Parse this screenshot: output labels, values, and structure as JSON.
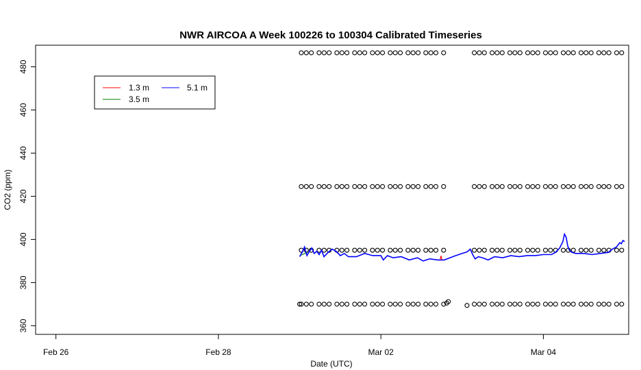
{
  "chart_data": {
    "type": "line",
    "title": "NWR AIRCOA A  Week 100226 to 100304  Calibrated Timeseries",
    "xlabel": "Date (UTC)",
    "ylabel": "CO2 (ppm)",
    "x_ticks": [
      {
        "x": 0,
        "label": "Feb 26"
      },
      {
        "x": 2,
        "label": "Feb 28"
      },
      {
        "x": 4,
        "label": "Mar 02"
      },
      {
        "x": 6,
        "label": "Mar 04"
      }
    ],
    "y_ticks": [
      360,
      380,
      400,
      420,
      440,
      460,
      480
    ],
    "xlim": [
      -0.25,
      7.05
    ],
    "ylim": [
      356,
      490
    ],
    "grid": false,
    "legend_position": "top-left",
    "series": [
      {
        "name": "1.3 m",
        "color": "#ff0000",
        "points": [
          [
            4.73,
            390.8
          ],
          [
            4.74,
            392.4
          ],
          [
            4.75,
            390.6
          ]
        ]
      },
      {
        "name": "3.5 m",
        "color": "#008000",
        "points": [
          [
            3.0,
            392.5
          ],
          [
            3.1,
            394.0
          ]
        ]
      },
      {
        "name": "5.1 m",
        "color": "#0000ff",
        "points": [
          [
            3.0,
            392
          ],
          [
            3.03,
            394
          ],
          [
            3.06,
            396.5
          ],
          [
            3.09,
            392.5
          ],
          [
            3.12,
            394.5
          ],
          [
            3.15,
            396
          ],
          [
            3.18,
            393.5
          ],
          [
            3.21,
            394.5
          ],
          [
            3.24,
            393
          ],
          [
            3.27,
            395
          ],
          [
            3.3,
            392
          ],
          [
            3.35,
            394
          ],
          [
            3.4,
            395.5
          ],
          [
            3.45,
            394.5
          ],
          [
            3.5,
            392.5
          ],
          [
            3.55,
            393.5
          ],
          [
            3.6,
            392
          ],
          [
            3.7,
            392
          ],
          [
            3.8,
            393.5
          ],
          [
            3.9,
            392.5
          ],
          [
            4.0,
            392.5
          ],
          [
            4.03,
            390.5
          ],
          [
            4.08,
            392.5
          ],
          [
            4.15,
            391.5
          ],
          [
            4.25,
            392
          ],
          [
            4.35,
            390.5
          ],
          [
            4.45,
            391.5
          ],
          [
            4.52,
            390
          ],
          [
            4.6,
            391
          ],
          [
            4.7,
            390.5
          ],
          [
            4.78,
            390.5
          ],
          [
            4.85,
            391.5
          ],
          [
            4.92,
            392.5
          ],
          [
            5.0,
            393.5
          ],
          [
            5.06,
            394.2
          ],
          [
            5.1,
            395.5
          ],
          [
            5.13,
            393
          ],
          [
            5.16,
            391
          ],
          [
            5.2,
            392
          ],
          [
            5.25,
            391.5
          ],
          [
            5.32,
            390.5
          ],
          [
            5.4,
            392
          ],
          [
            5.5,
            391.5
          ],
          [
            5.6,
            392.5
          ],
          [
            5.7,
            392
          ],
          [
            5.8,
            392.5
          ],
          [
            5.9,
            392.5
          ],
          [
            6.0,
            393
          ],
          [
            6.1,
            393
          ],
          [
            6.15,
            394
          ],
          [
            6.2,
            396
          ],
          [
            6.24,
            399
          ],
          [
            6.26,
            402.5
          ],
          [
            6.28,
            401
          ],
          [
            6.3,
            397
          ],
          [
            6.32,
            395
          ],
          [
            6.35,
            394
          ],
          [
            6.4,
            393.5
          ],
          [
            6.5,
            393.5
          ],
          [
            6.6,
            393
          ],
          [
            6.7,
            393.5
          ],
          [
            6.8,
            394
          ],
          [
            6.85,
            395.5
          ],
          [
            6.9,
            396.5
          ],
          [
            6.94,
            398.5
          ],
          [
            6.96,
            398
          ],
          [
            6.98,
            399.5
          ],
          [
            7.0,
            399
          ]
        ]
      }
    ],
    "calibration_markers": {
      "symbol": "open-circle",
      "levels": [
        370,
        395,
        424.5,
        486.5
      ],
      "x_ranges": [
        [
          3.02,
          4.78
        ],
        [
          5.15,
          7.02
        ]
      ],
      "extra_points": [
        [
          4.81,
          370.5
        ],
        [
          4.83,
          371.2
        ],
        [
          5.06,
          369.4
        ],
        [
          3.0,
          370
        ]
      ]
    },
    "legend": [
      {
        "label": "1.3 m",
        "color": "#ff0000"
      },
      {
        "label": "5.1 m",
        "color": "#0000ff"
      },
      {
        "label": "3.5 m",
        "color": "#008000"
      }
    ]
  }
}
